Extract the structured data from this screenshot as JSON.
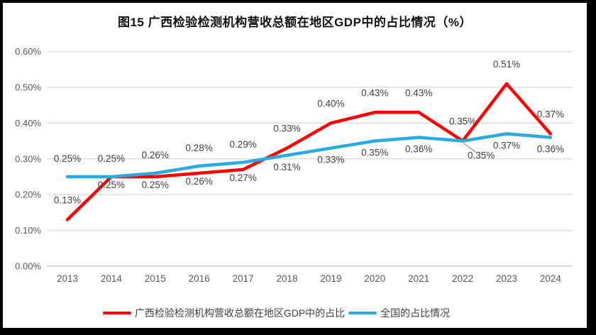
{
  "title": "图15 广西检验检测机构营收总额在地区GDP中的占比情况（%）",
  "colors": {
    "guangxi": "#FF0000",
    "national": "#29ABE2",
    "gridline": "#D9D9D9",
    "axis_line": "#BFBFBF",
    "axis_text": "#595959",
    "data_label_text": "#3F3F3F",
    "leader": "#A6A6A6",
    "frame": "#000000"
  },
  "chart_data": {
    "type": "line",
    "title": "图15 广西检验检测机构营收总额在地区GDP中的占比情况（%）",
    "xlabel": "",
    "ylabel": "",
    "ylim": [
      0,
      0.6
    ],
    "grid": true,
    "legend_position": "bottom",
    "categories": [
      "2013",
      "2014",
      "2015",
      "2016",
      "2017",
      "2018",
      "2019",
      "2020",
      "2021",
      "2022",
      "2023",
      "2024"
    ],
    "y_axis": {
      "values": [
        0,
        0.1,
        0.2,
        0.3,
        0.4,
        0.5,
        0.6
      ],
      "labels": [
        "0.00%",
        "0.10%",
        "0.20%",
        "0.30%",
        "0.40%",
        "0.50%",
        "0.60%"
      ]
    },
    "series": [
      {
        "id": "guangxi",
        "name": "广西检验检测机构营收总额在地区GDP中的占比",
        "color_key": "guangxi",
        "values": [
          0.13,
          0.25,
          0.25,
          0.26,
          0.27,
          0.33,
          0.4,
          0.43,
          0.43,
          0.35,
          0.51,
          0.37
        ],
        "labels": [
          "0.13%",
          "0.25%",
          "0.25%",
          "0.26%",
          "0.27%",
          "0.33%",
          "0.40%",
          "0.43%",
          "0.43%",
          "0.35%",
          "0.51%",
          "0.37%"
        ],
        "label_side": [
          "above",
          "below",
          "below",
          "below",
          "below",
          "above",
          "above",
          "above",
          "above",
          "above",
          "above",
          "above"
        ]
      },
      {
        "id": "national",
        "name": "全国的占比情况",
        "color_key": "national",
        "values": [
          0.25,
          0.25,
          0.26,
          0.28,
          0.29,
          0.31,
          0.33,
          0.35,
          0.36,
          0.35,
          0.37,
          0.36
        ],
        "labels": [
          "0.25%",
          "0.25%",
          "0.26%",
          "0.28%",
          "0.29%",
          "0.31%",
          "0.33%",
          "0.35%",
          "0.36%",
          "0.35%",
          "0.37%",
          "0.36%"
        ],
        "label_side": [
          "above",
          "above",
          "above",
          "above",
          "above",
          "below",
          "below",
          "below",
          "below",
          "below",
          "below",
          "below"
        ]
      }
    ],
    "label_overrides": [
      {
        "series": 1,
        "index": 9,
        "dx": 26,
        "dy": 4,
        "leader": true
      }
    ]
  }
}
